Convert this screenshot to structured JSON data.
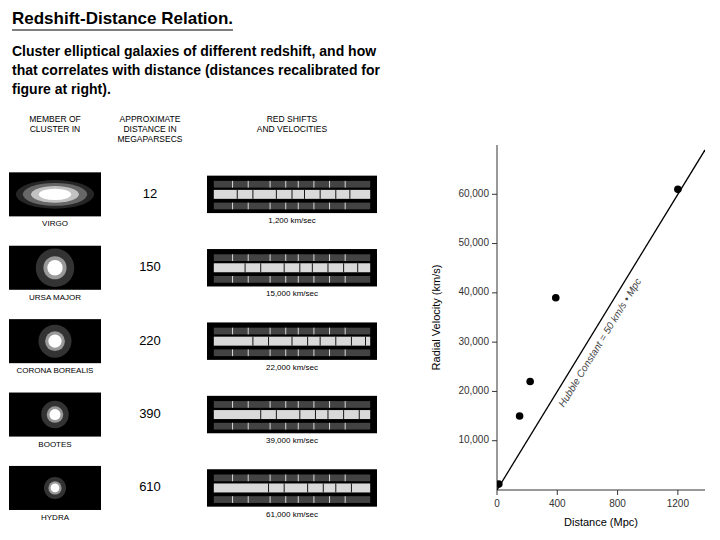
{
  "chart_data": [
    {
      "type": "table",
      "title": "Redshift-Distance Relation.",
      "subtitle": "Cluster elliptical galaxies of different redshift, and how\nthat correlates with distance (distances recalibrated for\nfigure at right).",
      "xlabel": "MEMBER OF\nCLUSTER IN",
      "categories": [
        "VIRGO",
        "URSA MAJOR",
        "CORONA BOREALIS",
        "BOOTES",
        "HYDRA"
      ],
      "series": [
        {
          "name": "APPROXIMATE\nDISTANCE IN\nMEGAPARSECS",
          "values": [
            12,
            150,
            220,
            390,
            610
          ]
        },
        {
          "name": "RED SHIFTS\nAND VELOCITIES",
          "values": [
            1200,
            15000,
            22000,
            39000,
            61000
          ],
          "value_labels": [
            "1,200 km/sec",
            "15,000 km/sec",
            "22,000 km/sec",
            "39,000 km/sec",
            "61,000 km/sec"
          ]
        }
      ],
      "data_labels": true
    },
    {
      "type": "scatter",
      "xlabel": "Distance (Mpc)",
      "ylabel": "Radial Velocity (km/s)",
      "annotation": "Hubble Constant = 50 km/s • Mpc",
      "xlim": [
        0,
        1380
      ],
      "ylim": [
        0,
        70000
      ],
      "xticks": [
        0,
        400,
        800,
        1200
      ],
      "yticks": [
        {
          "value": 10000,
          "label": "10,000"
        },
        {
          "value": 20000,
          "label": "20,000"
        },
        {
          "value": 30000,
          "label": "30,000"
        },
        {
          "value": 40000,
          "label": "40,000"
        },
        {
          "value": 50000,
          "label": "50,000"
        },
        {
          "value": 60000,
          "label": "60,000"
        }
      ],
      "series": [
        {
          "type": "line",
          "color": "#000000",
          "x": [
            0,
            1380
          ],
          "values": [
            0,
            69000
          ]
        },
        {
          "type": "scatter",
          "color": "#000000",
          "x": [
            12,
            150,
            220,
            390,
            1200
          ],
          "values": [
            1200,
            15000,
            22000,
            39000,
            61000
          ]
        }
      ]
    }
  ]
}
